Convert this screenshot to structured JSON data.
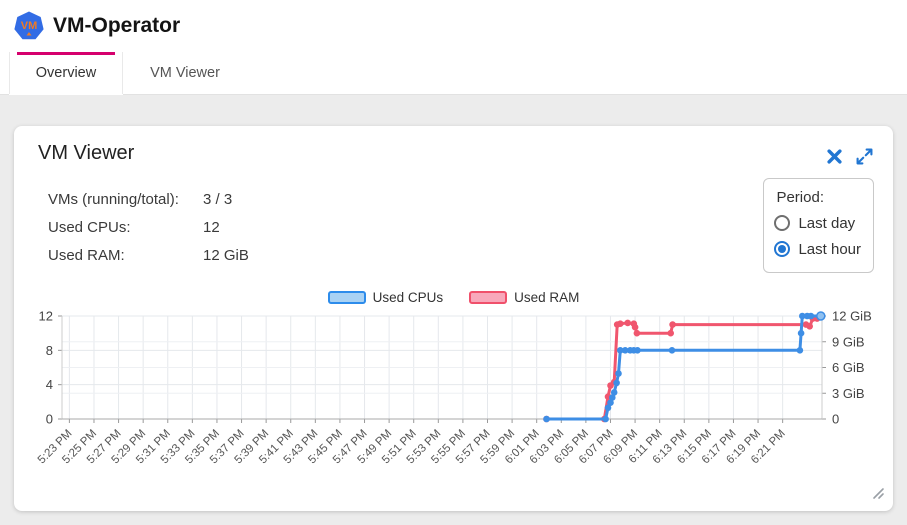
{
  "header": {
    "title": "VM-Operator",
    "logo_text": "VM"
  },
  "tabs": [
    {
      "label": "Overview",
      "active": true
    },
    {
      "label": "VM Viewer",
      "active": false
    }
  ],
  "card": {
    "title": "VM Viewer",
    "stats": [
      {
        "label": "VMs (running/total):",
        "value": "3 / 3"
      },
      {
        "label": "Used CPUs:",
        "value": "12"
      },
      {
        "label": "Used RAM:",
        "value": "12 GiB"
      }
    ],
    "period": {
      "label": "Period:",
      "options": [
        {
          "label": "Last day",
          "selected": false
        },
        {
          "label": "Last hour",
          "selected": true
        }
      ]
    }
  },
  "chart_data": {
    "type": "line",
    "legend": [
      {
        "name": "Used CPUs"
      },
      {
        "name": "Used RAM"
      }
    ],
    "x_tick_labels": [
      "5:23 PM",
      "5:25 PM",
      "5:27 PM",
      "5:29 PM",
      "5:31 PM",
      "5:33 PM",
      "5:35 PM",
      "5:37 PM",
      "5:39 PM",
      "5:41 PM",
      "5:43 PM",
      "5:45 PM",
      "5:47 PM",
      "5:49 PM",
      "5:51 PM",
      "5:53 PM",
      "5:55 PM",
      "5:57 PM",
      "5:59 PM",
      "6:01 PM",
      "6:03 PM",
      "6:05 PM",
      "6:07 PM",
      "6:09 PM",
      "6:11 PM",
      "6:13 PM",
      "6:15 PM",
      "6:17 PM",
      "6:19 PM",
      "6:21 PM"
    ],
    "x_tick_interval_minutes": 2,
    "x_range_minutes": [
      -0.6,
      61.2
    ],
    "left_axis": {
      "ticks": [
        0,
        4,
        8,
        12
      ],
      "range": [
        0,
        12
      ]
    },
    "right_axis": {
      "tick_values": [
        0,
        3,
        6,
        9,
        12
      ],
      "tick_labels": [
        "0",
        "3 GiB",
        "6 GiB",
        "9 GiB",
        "12 GiB"
      ],
      "range": [
        0,
        12
      ]
    },
    "series": [
      {
        "name": "Used RAM",
        "axis": "right",
        "color": "#f0566e",
        "points": [
          [
            38.8,
            0
          ],
          [
            43.5,
            0
          ],
          [
            43.8,
            2.6
          ],
          [
            44.0,
            3.9
          ],
          [
            44.3,
            4.3
          ],
          [
            44.55,
            11
          ],
          [
            44.8,
            11.1
          ],
          [
            45.4,
            11.2
          ],
          [
            45.9,
            11.1
          ],
          [
            46.0,
            10.7
          ],
          [
            46.15,
            10
          ],
          [
            48.9,
            10
          ],
          [
            49.05,
            11
          ],
          [
            59.9,
            11
          ],
          [
            60.2,
            10.8
          ],
          [
            60.45,
            11.7
          ],
          [
            60.8,
            11.7
          ]
        ]
      },
      {
        "name": "Used CPUs",
        "axis": "left",
        "color": "#3e8ee5",
        "end_marker_light": true,
        "points": [
          [
            38.8,
            0
          ],
          [
            43.6,
            0
          ],
          [
            43.8,
            1.3
          ],
          [
            44.0,
            1.9
          ],
          [
            44.15,
            2.5
          ],
          [
            44.3,
            3.1
          ],
          [
            44.5,
            4.2
          ],
          [
            44.65,
            5.3
          ],
          [
            44.8,
            8
          ],
          [
            45.2,
            8
          ],
          [
            45.6,
            8
          ],
          [
            45.9,
            8
          ],
          [
            46.2,
            8
          ],
          [
            49.0,
            8
          ],
          [
            59.4,
            8
          ],
          [
            59.5,
            10
          ],
          [
            59.6,
            12
          ],
          [
            60.0,
            12
          ],
          [
            60.3,
            12
          ],
          [
            61.1,
            12
          ]
        ]
      }
    ]
  },
  "colors": {
    "accent_magenta": "#d5006d",
    "icon_blue": "#2176d2",
    "logo_blue": "#326ce5",
    "logo_text_orange": "#f07b24",
    "cpu_line": "#3e8ee5",
    "cpu_legend_fill": "#a9d2f4",
    "ram_line": "#f0566e",
    "ram_legend_fill": "#f8a8bb",
    "page_bg": "#ececec"
  }
}
